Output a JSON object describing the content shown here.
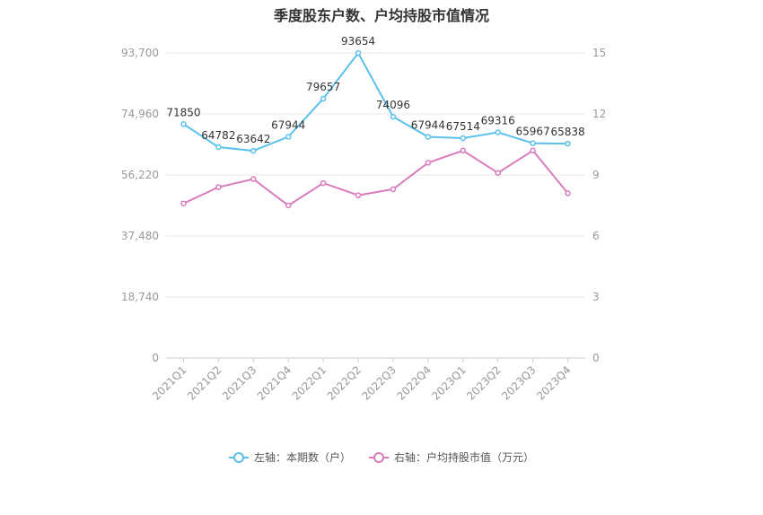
{
  "chart_data": {
    "type": "line",
    "title": "季度股东户数、户均持股市值情况",
    "categories": [
      "2021Q1",
      "2021Q2",
      "2021Q3",
      "2021Q4",
      "2022Q1",
      "2022Q2",
      "2022Q3",
      "2022Q4",
      "2023Q1",
      "2023Q2",
      "2023Q3",
      "2023Q4"
    ],
    "left_axis": {
      "ticks": [
        "0",
        "18,740",
        "37,480",
        "56,220",
        "74,960",
        "93,700"
      ],
      "min": 0,
      "max": 93700
    },
    "right_axis": {
      "ticks": [
        "0",
        "3",
        "6",
        "9",
        "12",
        "15"
      ],
      "min": 0,
      "max": 15
    },
    "grid": true,
    "legend_position": "bottom",
    "series": [
      {
        "name": "左轴：本期数（户）",
        "axis": "left",
        "color": "#5bc0eb",
        "values": [
          71850,
          64782,
          63642,
          67944,
          79657,
          93654,
          74096,
          67944,
          67514,
          69316,
          65967,
          65838
        ],
        "labels": [
          "71850",
          "64782",
          "63642",
          "67944",
          "79657",
          "93654",
          "74096",
          "67944",
          "67514",
          "69316",
          "65967",
          "65838"
        ]
      },
      {
        "name": "右轴：户均持股市值（万元）",
        "axis": "right",
        "color": "#d97bbd",
        "values": [
          7.6,
          8.4,
          8.8,
          7.5,
          8.6,
          8.0,
          8.3,
          9.6,
          10.2,
          9.1,
          10.2,
          8.1
        ]
      }
    ]
  }
}
